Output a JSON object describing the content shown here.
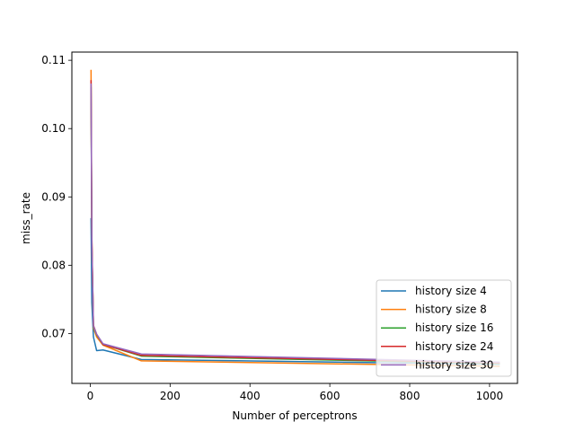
{
  "chart_data": {
    "type": "line",
    "title": "",
    "xlabel": "Number of perceptrons",
    "ylabel": "miss_rate",
    "xlim": [
      -46,
      1070
    ],
    "ylim": [
      0.0627,
      0.1112
    ],
    "x_ticks": [
      0,
      200,
      400,
      600,
      800,
      1000
    ],
    "y_ticks": [
      0.07,
      0.08,
      0.09,
      0.1,
      0.11
    ],
    "y_tick_labels": [
      "0.07",
      "0.08",
      "0.09",
      "0.10",
      "0.11"
    ],
    "x_tick_labels": [
      "0",
      "200",
      "400",
      "600",
      "800",
      "1000"
    ],
    "grid": false,
    "legend_position": "lower-right",
    "series": [
      {
        "name": "history size 4",
        "color": "#1f77b4",
        "x": [
          2,
          4,
          8,
          16,
          32,
          128,
          1024
        ],
        "y": [
          0.0868,
          0.0745,
          0.0695,
          0.0675,
          0.0676,
          0.0662,
          0.0655
        ]
      },
      {
        "name": "history size 8",
        "color": "#ff7f0e",
        "x": [
          2,
          4,
          8,
          16,
          32,
          128,
          1024
        ],
        "y": [
          0.1085,
          0.084,
          0.0708,
          0.0695,
          0.0683,
          0.066,
          0.0652
        ]
      },
      {
        "name": "history size 16",
        "color": "#2ca02c",
        "x": [
          2,
          4,
          8,
          16,
          32,
          128,
          1024
        ],
        "y": [
          0.106,
          0.083,
          0.071,
          0.0698,
          0.0684,
          0.0667,
          0.0656
        ]
      },
      {
        "name": "history size 24",
        "color": "#d62728",
        "x": [
          2,
          4,
          8,
          16,
          32,
          128,
          1024
        ],
        "y": [
          0.107,
          0.084,
          0.0712,
          0.0699,
          0.0684,
          0.0668,
          0.0657
        ]
      },
      {
        "name": "history size 30",
        "color": "#9467bd",
        "x": [
          2,
          4,
          8,
          16,
          32,
          128,
          1024
        ],
        "y": [
          0.1065,
          0.0835,
          0.0711,
          0.0699,
          0.0685,
          0.067,
          0.0658
        ]
      }
    ]
  }
}
